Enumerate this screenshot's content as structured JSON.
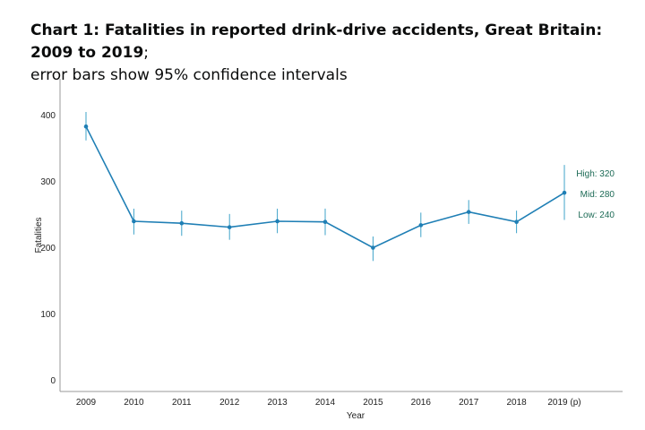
{
  "header": {
    "title": "Chart 1: Fatalities in reported drink-drive accidents, Great Britain: 2009 to 2019",
    "separator": ";",
    "subtitle": "error bars show 95% confidence intervals"
  },
  "colors": {
    "series": "#1f7fb5",
    "error_bar": "#3fa3c9",
    "annotation": "#1d6b56",
    "axis": "#999999"
  },
  "chart_data": {
    "type": "line",
    "x": [
      "2009",
      "2010",
      "2011",
      "2012",
      "2013",
      "2014",
      "2015",
      "2016",
      "2017",
      "2018",
      "2019 (p)"
    ],
    "series": [
      {
        "values": [
          383,
          240,
          237,
          231,
          240,
          239,
          200,
          234,
          254,
          239,
          283
        ],
        "lower": [
          362,
          220,
          218,
          212,
          222,
          219,
          180,
          216,
          236,
          222,
          242
        ],
        "upper": [
          405,
          259,
          256,
          251,
          259,
          259,
          217,
          253,
          272,
          256,
          325
        ]
      }
    ],
    "xlabel": "Year",
    "ylabel": "Fatalities",
    "yticks": [
      "0",
      "100",
      "200",
      "300",
      "400"
    ],
    "ylim": [
      -17,
      455
    ],
    "grid": false,
    "annotations": [
      {
        "label": "High: 320",
        "y": 312
      },
      {
        "label": "Mid: 280",
        "y": 281
      },
      {
        "label": "Low: 240",
        "y": 250
      }
    ]
  }
}
